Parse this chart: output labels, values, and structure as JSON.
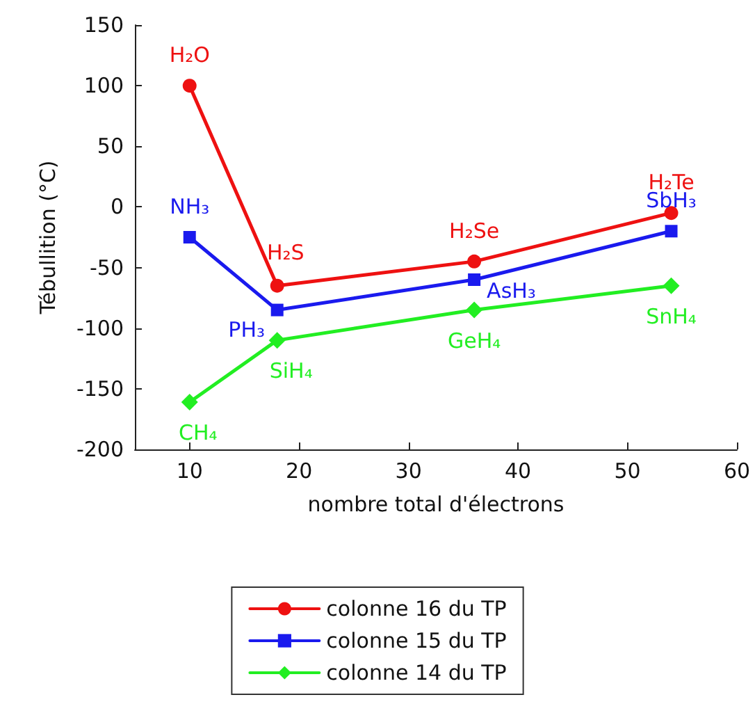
{
  "chart_data": {
    "type": "line",
    "xlabel": "nombre total d'électrons",
    "ylabel": "Tébullition (°C)",
    "xlim": [
      5,
      60
    ],
    "xticks": [
      10,
      20,
      30,
      40,
      50,
      60
    ],
    "ylim": [
      -200,
      150
    ],
    "yticks": [
      -200,
      -150,
      -100,
      -50,
      0,
      50,
      100,
      150
    ],
    "grid": false,
    "legend": "bottom",
    "line_style": "solid",
    "x": [
      10,
      18,
      36,
      54
    ],
    "series": [
      {
        "name": "colonne 16 du TP",
        "color": "#ee1111",
        "marker": "circle",
        "values": [
          100,
          -65,
          -45,
          -5
        ]
      },
      {
        "name": "colonne 15 du TP",
        "color": "#1a1aee",
        "marker": "square",
        "values": [
          -25,
          -85,
          -60,
          -20
        ]
      },
      {
        "name": "colonne 14 du TP",
        "color": "#22ee22",
        "marker": "diamond",
        "values": [
          -161,
          -110,
          -85,
          -65
        ]
      }
    ],
    "annotations": [
      {
        "text": "H₂O",
        "x": 10,
        "y": 100
      },
      {
        "text": "H₂S",
        "x": 18,
        "y": -65
      },
      {
        "text": "H₂Se",
        "x": 36,
        "y": -45
      },
      {
        "text": "H₂Te",
        "x": 54,
        "y": -5
      },
      {
        "text": "NH₃",
        "x": 10,
        "y": -25
      },
      {
        "text": "PH₃",
        "x": 18,
        "y": -85
      },
      {
        "text": "AsH₃",
        "x": 36,
        "y": -60
      },
      {
        "text": "SbH₃",
        "x": 54,
        "y": -20
      },
      {
        "text": "CH₄",
        "x": 10,
        "y": -161
      },
      {
        "text": "SiH₄",
        "x": 18,
        "y": -110
      },
      {
        "text": "GeH₄",
        "x": 36,
        "y": -85
      },
      {
        "text": "SnH₄",
        "x": 54,
        "y": -65
      }
    ]
  }
}
